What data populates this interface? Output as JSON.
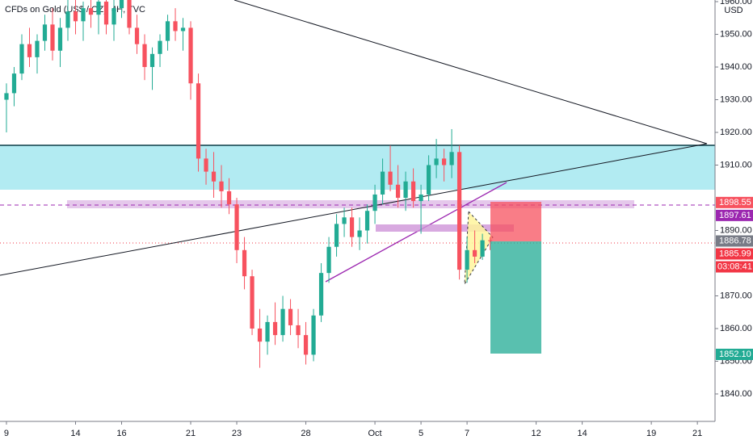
{
  "chart_data": {
    "type": "candlestick",
    "title": "CFDs on Gold (US$ / OZ), 4H, TVC",
    "currency": "USD",
    "up_color": "#22ab94",
    "down_color": "#f7525f",
    "x": [
      0,
      1,
      2,
      3,
      4,
      5,
      6,
      7,
      8,
      9,
      10,
      11,
      12,
      13,
      14,
      15,
      16,
      17,
      18,
      19,
      20,
      21,
      22,
      23,
      24,
      25,
      26,
      27,
      28,
      29,
      30,
      31,
      32,
      33,
      34,
      35,
      36,
      37,
      38,
      39,
      40,
      41,
      42,
      43,
      44,
      45,
      46,
      47,
      48,
      49,
      50,
      51,
      52,
      53,
      54,
      55,
      56,
      57,
      58,
      59,
      60,
      61,
      62,
      63
    ],
    "open": [
      1930,
      1932,
      1938,
      1947,
      1943,
      1948,
      1953,
      1945,
      1952,
      1957,
      1954,
      1958,
      1956,
      1960,
      1953,
      1958,
      1961,
      1952,
      1947,
      1940,
      1944,
      1948,
      1954,
      1951,
      1952,
      1935,
      1912,
      1908,
      1905,
      1902,
      1898,
      1884,
      1876,
      1860,
      1856,
      1862,
      1858,
      1866,
      1861,
      1858,
      1852,
      1864,
      1877,
      1885,
      1892,
      1894,
      1888,
      1890,
      1896,
      1901,
      1908,
      1904,
      1900,
      1905,
      1899,
      1901,
      1910,
      1912,
      1910,
      1914,
      1878,
      1884,
      1882,
      1887
    ],
    "high": [
      1935,
      1940,
      1950,
      1952,
      1950,
      1956,
      1958,
      1955,
      1961,
      1962,
      1960,
      1964,
      1962,
      1963,
      1961,
      1963,
      1962,
      1956,
      1950,
      1946,
      1950,
      1956,
      1958,
      1955,
      1954,
      1938,
      1915,
      1914,
      1910,
      1906,
      1900,
      1888,
      1878,
      1866,
      1864,
      1868,
      1870,
      1869,
      1866,
      1862,
      1866,
      1880,
      1888,
      1895,
      1897,
      1897,
      1894,
      1898,
      1904,
      1912,
      1916,
      1910,
      1908,
      1909,
      1904,
      1913,
      1918,
      1915,
      1921,
      1916,
      1888,
      1890,
      1889,
      1888
    ],
    "low": [
      1920,
      1928,
      1936,
      1940,
      1938,
      1945,
      1942,
      1940,
      1948,
      1950,
      1948,
      1952,
      1950,
      1950,
      1948,
      1955,
      1950,
      1944,
      1936,
      1933,
      1940,
      1945,
      1948,
      1945,
      1930,
      1908,
      1904,
      1900,
      1897,
      1895,
      1880,
      1872,
      1858,
      1848,
      1852,
      1855,
      1856,
      1858,
      1854,
      1849,
      1850,
      1862,
      1874,
      1882,
      1888,
      1885,
      1884,
      1886,
      1892,
      1898,
      1902,
      1897,
      1896,
      1897,
      1889,
      1899,
      1906,
      1905,
      1906,
      1875,
      1874,
      1880,
      1881,
      1884
    ],
    "close": [
      1932,
      1938,
      1947,
      1943,
      1948,
      1953,
      1945,
      1952,
      1957,
      1954,
      1958,
      1956,
      1960,
      1953,
      1958,
      1961,
      1952,
      1947,
      1940,
      1944,
      1948,
      1954,
      1951,
      1952,
      1935,
      1912,
      1908,
      1905,
      1902,
      1898,
      1884,
      1876,
      1860,
      1856,
      1862,
      1858,
      1866,
      1861,
      1858,
      1852,
      1864,
      1877,
      1885,
      1892,
      1894,
      1888,
      1890,
      1896,
      1901,
      1908,
      1904,
      1900,
      1905,
      1899,
      1901,
      1910,
      1912,
      1910,
      1914,
      1878,
      1884,
      1882,
      1887,
      1886.78
    ],
    "xlim": [
      -0.84,
      92.3
    ],
    "xticks": [
      {
        "value": 0,
        "label": "9"
      },
      {
        "value": 9,
        "label": "14"
      },
      {
        "value": 15,
        "label": "16"
      },
      {
        "value": 24,
        "label": "21"
      },
      {
        "value": 30,
        "label": "23"
      },
      {
        "value": 39,
        "label": "28"
      },
      {
        "value": 48,
        "label": "Oct"
      },
      {
        "value": 54,
        "label": "5"
      },
      {
        "value": 60,
        "label": "7"
      },
      {
        "value": 69,
        "label": "12"
      },
      {
        "value": 75,
        "label": "14"
      },
      {
        "value": 84,
        "label": "19"
      },
      {
        "value": 90,
        "label": "21"
      }
    ],
    "ylim": [
      1831.6,
      1960.5
    ],
    "yticks": [
      {
        "value": 1840,
        "label": "1840.00"
      },
      {
        "value": 1850,
        "label": "1850.00"
      },
      {
        "value": 1860,
        "label": "1860.00"
      },
      {
        "value": 1870,
        "label": "1870.00"
      },
      {
        "value": 1890,
        "label": "1890.00"
      },
      {
        "value": 1910,
        "label": "1910.00"
      },
      {
        "value": 1920,
        "label": "1920.00"
      },
      {
        "value": 1930,
        "label": "1930.00"
      },
      {
        "value": 1940,
        "label": "1940.00"
      },
      {
        "value": 1950,
        "label": "1950.00"
      },
      {
        "value": 1960,
        "label": "1960.00"
      }
    ],
    "price_labels": [
      {
        "value": 1898.55,
        "label": "1898.55",
        "color": "#f7525f"
      },
      {
        "value": 1897.61,
        "label": "1897.61",
        "color": "#9c27b0"
      },
      {
        "value": 1886.78,
        "label": "1886.78",
        "color": "#787b86"
      },
      {
        "value": 1885.99,
        "label": "1885.99",
        "color": "#f23645"
      },
      {
        "value": 1852.1,
        "label": "1852.10",
        "color": "#22ab94"
      }
    ],
    "countdown": "03:08:41"
  }
}
